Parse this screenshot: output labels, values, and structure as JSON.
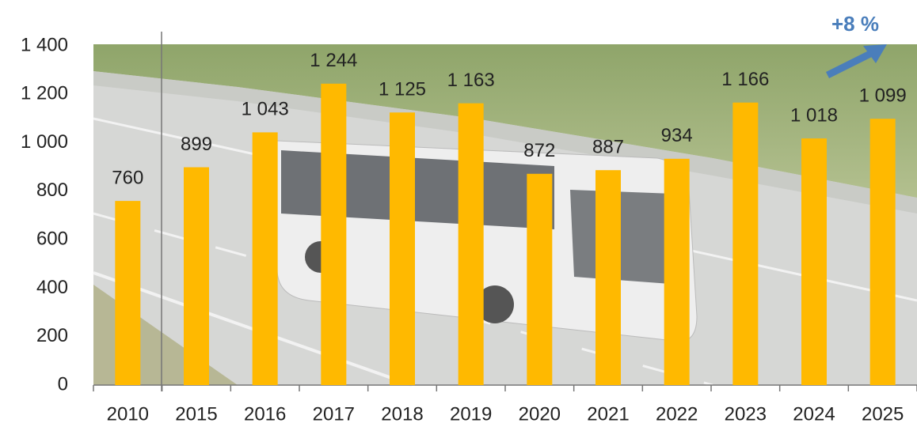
{
  "chart_data": {
    "type": "bar",
    "annotation": "+8 %",
    "categories": [
      "2010",
      "2015",
      "2016",
      "2017",
      "2018",
      "2019",
      "2020",
      "2021",
      "2022",
      "2023",
      "2024",
      "2025"
    ],
    "values": [
      760,
      899,
      1043,
      1244,
      1125,
      1163,
      872,
      887,
      934,
      1166,
      1018,
      1099
    ],
    "value_labels": [
      "760",
      "899",
      "1 043",
      "1 244",
      "1 125",
      "1 163",
      "872",
      "887",
      "934",
      "1 166",
      "1 018",
      "1 099"
    ],
    "color": "#ffb900",
    "ylim": [
      0,
      1400
    ],
    "yticks": [
      0,
      200,
      400,
      600,
      800,
      {
        "value": 1000,
        "label": "1 000"
      },
      {
        "value": 1200,
        "label": "1 200"
      },
      {
        "value": 1400,
        "label": "1 400"
      }
    ]
  }
}
